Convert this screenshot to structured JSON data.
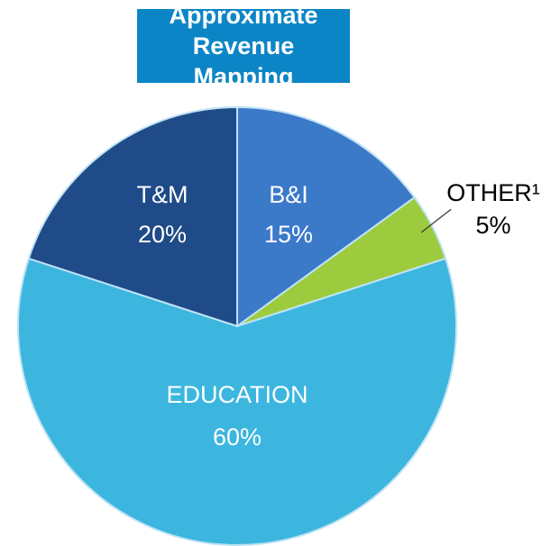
{
  "chart_data": {
    "type": "pie",
    "title": "Approximate Revenue Mapping",
    "categories": [
      "B&I",
      "OTHER¹",
      "EDUCATION",
      "T&M"
    ],
    "values": [
      15,
      5,
      60,
      20
    ],
    "value_labels": [
      "15%",
      "5%",
      "60%",
      "20%"
    ],
    "colors": [
      "#3b79c9",
      "#9ccc3e",
      "#3cb6df",
      "#1f4b88"
    ]
  }
}
